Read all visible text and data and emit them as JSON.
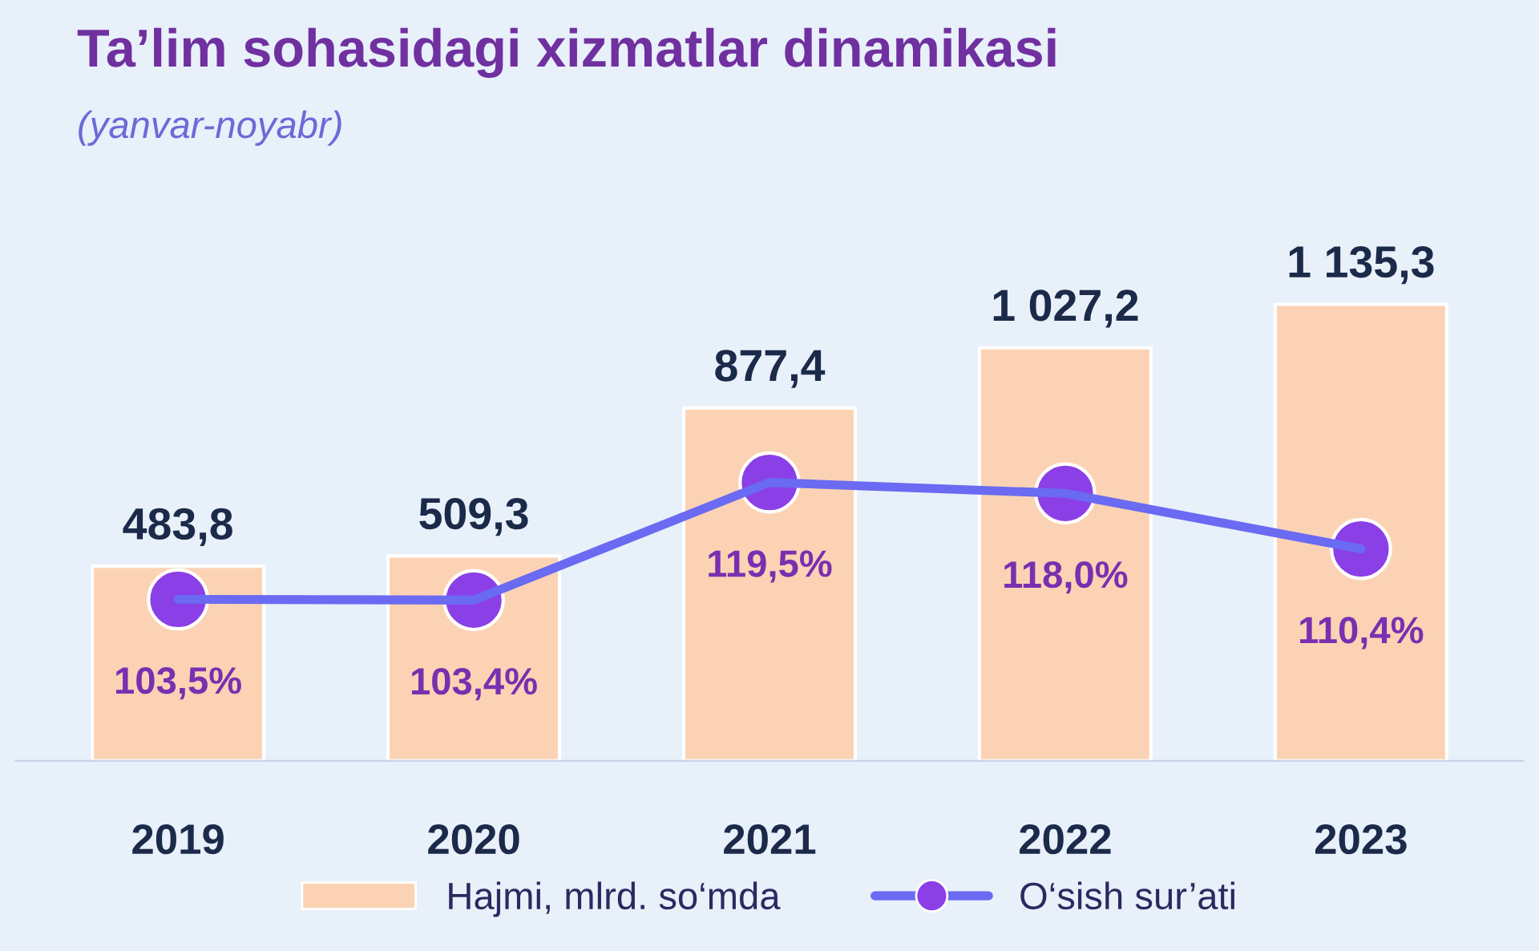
{
  "chart_data": {
    "type": "bar",
    "title": "Ta’lim sohasidagi xizmatlar dinamikasi",
    "subtitle": "(yanvar-noyabr)",
    "categories": [
      "2019",
      "2020",
      "2021",
      "2022",
      "2023"
    ],
    "series": [
      {
        "name": "Hajmi, mlrd. so‘mda",
        "color": "#fbd3b4",
        "values": [
          483.8,
          509.3,
          877.4,
          1027.2,
          1135.3
        ],
        "value_labels": [
          "483,8",
          "509,3",
          "877,4",
          "1 027,2",
          "1 135,3"
        ]
      },
      {
        "name": "O‘sish sur’ati",
        "type": "line",
        "axis": "y2",
        "color": "#6a6af2",
        "values": [
          103.5,
          103.4,
          119.5,
          118.0,
          110.4
        ],
        "value_labels": [
          "103,5%",
          "103,4%",
          "119,5%",
          "118,0%",
          "110,4%"
        ]
      }
    ],
    "marker": "circle",
    "legend": "bottom",
    "grid": false,
    "tick_labels": "x"
  }
}
